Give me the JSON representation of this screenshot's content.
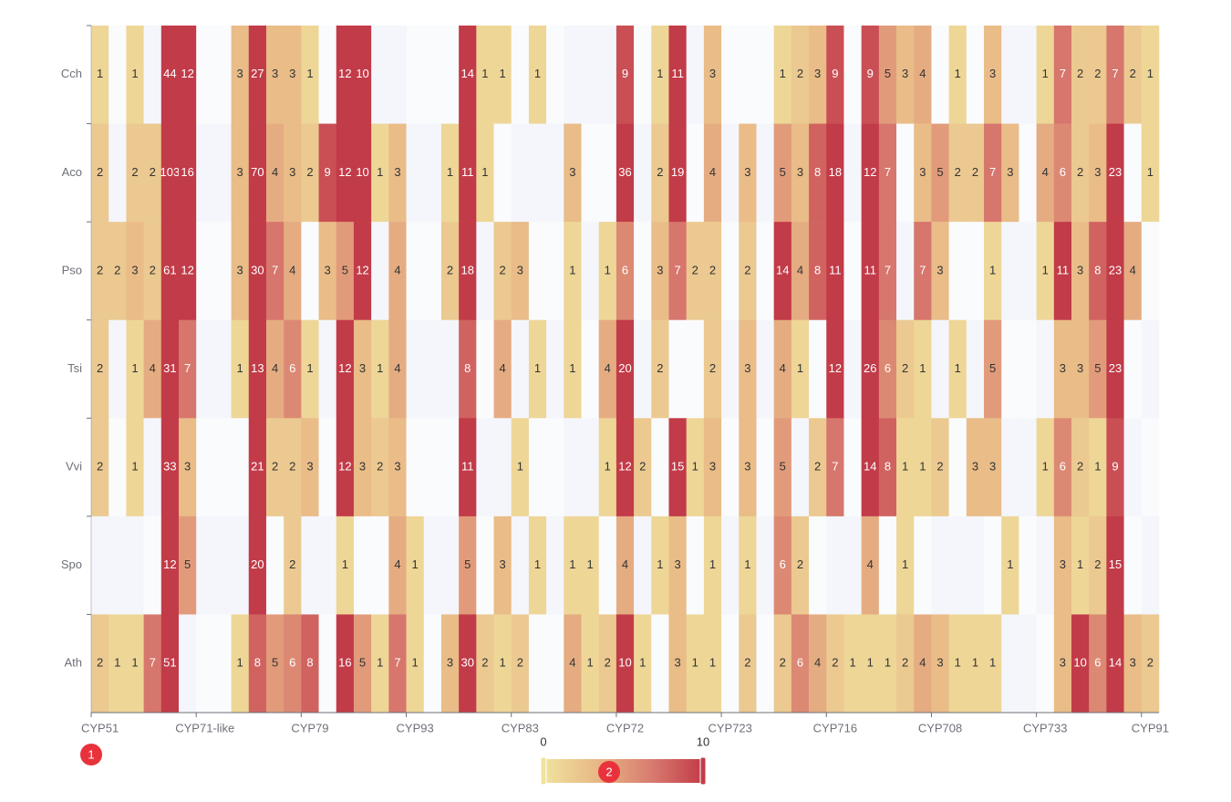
{
  "chart_data": {
    "type": "heatmap",
    "categories": [
      "CYP51",
      null,
      null,
      null,
      null,
      null,
      "CYP71-like",
      null,
      null,
      null,
      null,
      null,
      "CYP79",
      null,
      null,
      null,
      null,
      null,
      "CYP93",
      null,
      null,
      null,
      null,
      null,
      "CYP83",
      null,
      null,
      null,
      null,
      null,
      "CYP72",
      null,
      null,
      null,
      null,
      null,
      "CYP723",
      null,
      null,
      null,
      null,
      null,
      "CYP716",
      null,
      null,
      null,
      null,
      null,
      "CYP708",
      null,
      null,
      null,
      null,
      null,
      "CYP733",
      null,
      null,
      null,
      null,
      null,
      "CYP91"
    ],
    "rows": [
      "Cch",
      "Aco",
      "Pso",
      "Tsi",
      "Vvi",
      "Spo",
      "Ath"
    ],
    "values": [
      [
        1,
        null,
        1,
        null,
        44,
        12,
        null,
        null,
        3,
        27,
        3,
        3,
        1,
        null,
        12,
        10,
        null,
        null,
        null,
        null,
        null,
        14,
        1,
        1,
        null,
        1,
        null,
        null,
        null,
        null,
        9,
        null,
        1,
        11,
        null,
        3,
        null,
        null,
        null,
        1,
        2,
        3,
        9,
        null,
        9,
        5,
        3,
        4,
        null,
        1,
        null,
        3,
        null,
        null,
        1,
        7,
        2,
        2,
        7,
        2,
        1
      ],
      [
        2,
        null,
        2,
        2,
        103,
        16,
        null,
        null,
        3,
        70,
        4,
        3,
        2,
        9,
        12,
        10,
        1,
        3,
        null,
        null,
        1,
        11,
        1,
        null,
        null,
        null,
        null,
        3,
        null,
        null,
        36,
        null,
        2,
        19,
        null,
        4,
        null,
        3,
        null,
        5,
        3,
        8,
        18,
        null,
        12,
        7,
        null,
        3,
        5,
        2,
        2,
        7,
        3,
        null,
        4,
        6,
        2,
        3,
        23,
        null,
        1
      ],
      [
        2,
        2,
        3,
        2,
        61,
        12,
        null,
        null,
        3,
        30,
        7,
        4,
        null,
        3,
        5,
        12,
        null,
        4,
        null,
        null,
        2,
        18,
        null,
        2,
        3,
        null,
        null,
        1,
        null,
        1,
        6,
        null,
        3,
        7,
        2,
        2,
        null,
        2,
        null,
        14,
        4,
        8,
        11,
        null,
        11,
        7,
        null,
        7,
        3,
        null,
        null,
        1,
        null,
        null,
        1,
        11,
        3,
        8,
        23,
        4,
        null
      ],
      [
        2,
        null,
        1,
        4,
        31,
        7,
        null,
        null,
        1,
        13,
        4,
        6,
        1,
        null,
        12,
        3,
        1,
        4,
        null,
        null,
        null,
        8,
        null,
        4,
        null,
        1,
        null,
        1,
        null,
        4,
        20,
        null,
        2,
        null,
        null,
        2,
        null,
        3,
        null,
        4,
        1,
        null,
        12,
        null,
        26,
        6,
        2,
        1,
        null,
        1,
        null,
        5,
        null,
        null,
        null,
        3,
        3,
        5,
        23,
        null,
        null
      ],
      [
        2,
        null,
        1,
        null,
        33,
        3,
        null,
        null,
        null,
        21,
        2,
        2,
        3,
        null,
        12,
        3,
        2,
        3,
        null,
        null,
        null,
        11,
        null,
        null,
        1,
        null,
        null,
        null,
        null,
        1,
        12,
        2,
        null,
        15,
        1,
        3,
        null,
        3,
        null,
        5,
        null,
        2,
        7,
        null,
        14,
        8,
        1,
        1,
        2,
        null,
        3,
        3,
        null,
        null,
        1,
        6,
        2,
        1,
        9,
        null,
        null
      ],
      [
        null,
        null,
        null,
        null,
        12,
        5,
        null,
        null,
        null,
        20,
        null,
        2,
        null,
        null,
        1,
        null,
        null,
        4,
        1,
        null,
        null,
        5,
        null,
        3,
        null,
        1,
        null,
        1,
        1,
        null,
        4,
        null,
        1,
        3,
        null,
        1,
        null,
        1,
        null,
        6,
        2,
        null,
        null,
        null,
        4,
        null,
        1,
        null,
        null,
        null,
        null,
        null,
        1,
        null,
        null,
        3,
        1,
        2,
        15,
        null,
        null
      ],
      [
        2,
        1,
        1,
        7,
        51,
        null,
        null,
        null,
        1,
        8,
        5,
        6,
        8,
        null,
        16,
        5,
        1,
        7,
        1,
        null,
        3,
        30,
        2,
        1,
        2,
        null,
        null,
        4,
        1,
        2,
        10,
        1,
        null,
        3,
        1,
        1,
        null,
        2,
        null,
        2,
        6,
        4,
        2,
        1,
        1,
        1,
        2,
        4,
        3,
        1,
        1,
        1,
        null,
        null,
        null,
        3,
        10,
        6,
        14,
        3,
        2
      ]
    ],
    "visual_map": {
      "min": 0,
      "max": 10,
      "colors": [
        "#f0e39e",
        "#e8b886",
        "#d97d70",
        "#c23b48"
      ]
    },
    "markers": [
      "1",
      "2"
    ]
  }
}
